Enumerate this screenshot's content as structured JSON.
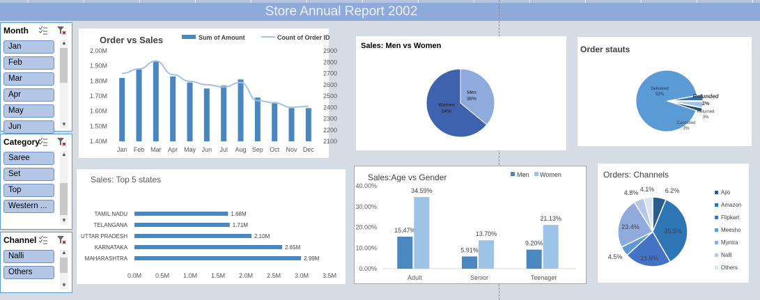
{
  "report_title": "Store Annual Report 2002",
  "slicers": {
    "month": {
      "label": "Month",
      "items": [
        "Jan",
        "Feb",
        "Mar",
        "Apr",
        "May",
        "Jun"
      ]
    },
    "category": {
      "label": "Category",
      "items": [
        "Saree",
        "Set",
        "Top",
        "Western ..."
      ]
    },
    "channel": {
      "label": "Channel",
      "items": [
        "Nalli",
        "Others"
      ]
    }
  },
  "chart_data": [
    {
      "id": "order_vs_sales",
      "type": "bar",
      "title": "Order vs Sales",
      "categories": [
        "Jan",
        "Feb",
        "Mar",
        "Apr",
        "May",
        "Jun",
        "Jul",
        "Aug",
        "Sep",
        "Oct",
        "Nov",
        "Dec"
      ],
      "series": [
        {
          "name": "Sum of Amount",
          "type": "bar",
          "axis": "left",
          "values": [
            1.82,
            1.88,
            1.93,
            1.83,
            1.79,
            1.75,
            1.77,
            1.81,
            1.69,
            1.66,
            1.62,
            1.62
          ]
        },
        {
          "name": "Count of Order ID",
          "type": "line",
          "axis": "right",
          "values": [
            2700,
            2740,
            2810,
            2690,
            2630,
            2600,
            2580,
            2620,
            2460,
            2440,
            2400,
            2410
          ]
        }
      ],
      "y_left_ticks": [
        "2.00M",
        "1.90M",
        "1.80M",
        "1.70M",
        "1.60M",
        "1.50M",
        "1.40M"
      ],
      "ylim_left": [
        1.4,
        2.0
      ],
      "y_right_ticks": [
        "2900",
        "2800",
        "2700",
        "2600",
        "2500",
        "2400",
        "2300",
        "2200",
        "2100"
      ],
      "ylim_right": [
        2100,
        2900
      ],
      "legend": "top"
    },
    {
      "id": "sales_men_women",
      "type": "pie",
      "title": "Sales: Men vs Women",
      "labels": [
        "Men",
        "Women"
      ],
      "values": [
        36,
        64
      ],
      "display": [
        "36%",
        "64%"
      ],
      "colors": [
        "#8faadc",
        "#3e62ad"
      ]
    },
    {
      "id": "order_status",
      "type": "pie",
      "title": "Order stauts",
      "labels": [
        "Delivered",
        "Refunded",
        "Returned",
        "Cancelled"
      ],
      "values": [
        92,
        2,
        3,
        3
      ],
      "display": [
        "92%",
        "2%",
        "3%",
        "3%"
      ],
      "colors": [
        "#5b9bd5",
        "#1f4e79",
        "#9dc3e6",
        "#2e75b6"
      ]
    },
    {
      "id": "top5_states",
      "type": "bar",
      "orientation": "horizontal",
      "title": "Sales: Top 5 states",
      "categories": [
        "TAMIL NADU",
        "TELANGANA",
        "UTTAR PRADESH",
        "KARNATAKA",
        "MAHARASHTRA"
      ],
      "values": [
        1.68,
        1.71,
        2.1,
        2.65,
        2.99
      ],
      "value_labels": [
        "1.68M",
        "1.71M",
        "2.10M",
        "2.65M",
        "2.99M"
      ],
      "x_ticks": [
        "0.0M",
        "0.5M",
        "1.0M",
        "1.5M",
        "2.0M",
        "2.5M",
        "3.0M",
        "3.5M"
      ],
      "xlim": [
        0,
        3.5
      ]
    },
    {
      "id": "age_vs_gender",
      "type": "bar",
      "title": "Sales:Age vs Gender",
      "categories": [
        "Adult",
        "Senior",
        "Teenager"
      ],
      "series": [
        {
          "name": "Men",
          "values": [
            15.47,
            5.91,
            9.2
          ],
          "labels": [
            "15.47%",
            "5.91%",
            "9.20%"
          ],
          "color": "#4a86c0"
        },
        {
          "name": "Women",
          "values": [
            34.59,
            13.7,
            21.13
          ],
          "labels": [
            "34.59%",
            "13.70%",
            "21.13%"
          ],
          "color": "#9dc3e6"
        }
      ],
      "y_ticks": [
        "40.00%",
        "30.00%",
        "20.00%",
        "10.00%",
        "0.00%"
      ],
      "ylim": [
        0,
        40
      ],
      "legend": "top-right"
    },
    {
      "id": "orders_channels",
      "type": "pie",
      "title": "Orders: Channels",
      "labels": [
        "Ajio",
        "Amazon",
        "Flipkart",
        "Meesho",
        "Myntra",
        "Nalli",
        "Others"
      ],
      "values": [
        6.2,
        35.5,
        21.6,
        4.5,
        23.4,
        4.8,
        4.1
      ],
      "display": [
        "6.2%",
        "35.5%",
        "21.6%",
        "4.5%",
        "23.4%",
        "4.8%",
        "4.1%"
      ],
      "colors": [
        "#2b5c8a",
        "#2e75b6",
        "#4472c4",
        "#5b9bd5",
        "#8faadc",
        "#b4c7e7",
        "#dae3f3"
      ],
      "legend": "right"
    }
  ]
}
